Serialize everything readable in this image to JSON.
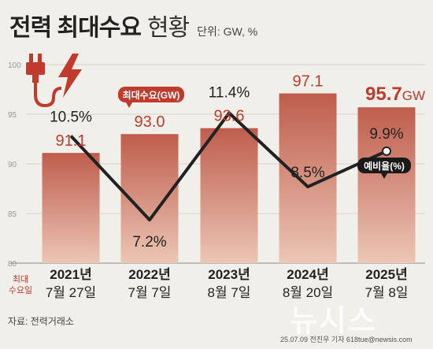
{
  "header": {
    "title_bold": "전력 최대수요",
    "title_light": "현황",
    "unit": "단위: GW, %"
  },
  "row_label": "최대\n수요일",
  "footer": {
    "source": "자료: 전력거래소",
    "credit": "25.07.09 전진우 기자 618tue@newsis.com",
    "watermark": "뉴시스"
  },
  "colors": {
    "bar_top": "#bf5d4d",
    "bar_bottom": "#ecc6b5",
    "line": "#222222",
    "accent_red": "#c23a2b",
    "background": "#f1efea"
  },
  "icon": "power-plug-lightning-icon",
  "chart_data": {
    "type": "bar",
    "categories": [
      "2021년",
      "2022년",
      "2023년",
      "2024년",
      "2025년"
    ],
    "dates": [
      "7월 27일",
      "7월 7일",
      "8월 7일",
      "8월 20일",
      "7월 8일"
    ],
    "series": [
      {
        "name": "최대수요(GW)",
        "values": [
          91.1,
          93.0,
          93.6,
          97.1,
          95.7
        ]
      },
      {
        "name": "예비율(%)",
        "type": "line",
        "values": [
          10.5,
          7.2,
          11.4,
          8.5,
          9.9
        ]
      }
    ],
    "value_labels": [
      "91.1",
      "93.0",
      "93.6",
      "97.1",
      "95.7"
    ],
    "rate_labels": [
      "10.5%",
      "7.2%",
      "11.4%",
      "8.5%",
      "9.9%"
    ],
    "last_value_unit": "GW",
    "yticks": [
      "80",
      "85",
      "90",
      "95",
      "100"
    ],
    "ylim": [
      80,
      100
    ],
    "line_ylim": [
      5.5,
      13.3
    ],
    "grid": true,
    "legend_callouts": [
      "최대수요(GW)",
      "예비율(%)"
    ]
  }
}
